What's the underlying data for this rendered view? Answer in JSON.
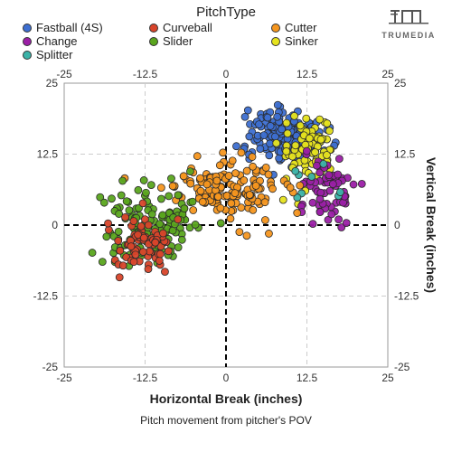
{
  "legend": {
    "title": "PitchType",
    "items": [
      {
        "label": "Fastball (4S)",
        "color": "#3d6fd1"
      },
      {
        "label": "Curveball",
        "color": "#d8442a"
      },
      {
        "label": "Cutter",
        "color": "#f5961f"
      },
      {
        "label": "Change",
        "color": "#9b1fa6"
      },
      {
        "label": "Slider",
        "color": "#5aa51d"
      },
      {
        "label": "Sinker",
        "color": "#e6e31e"
      },
      {
        "label": "Splitter",
        "color": "#3bb3a8"
      }
    ]
  },
  "brand": {
    "text": "TRUMEDIA"
  },
  "footnote": "Pitch movement from pitcher's POV",
  "chart_data": {
    "type": "scatter",
    "xlabel": "Horizontal Break (inches)",
    "ylabel": "Vertical Break (inches)",
    "xlim": [
      -25,
      25
    ],
    "ylim": [
      -25,
      25
    ],
    "x_ticks": [
      "-25",
      "-12.5",
      "0",
      "12.5",
      "25"
    ],
    "y_ticks": [
      "25",
      "12.5",
      "0",
      "-12.5",
      "-25"
    ],
    "grid": true,
    "legend_position": "top",
    "series": [
      {
        "name": "Fastball (4S)",
        "color": "#3d6fd1",
        "cx": 9,
        "cy": 16,
        "sx": 2.8,
        "sy": 2.3,
        "n": 180
      },
      {
        "name": "Sinker",
        "color": "#e6e31e",
        "cx": 13,
        "cy": 13,
        "sx": 2.2,
        "sy": 3.0,
        "n": 80
      },
      {
        "name": "Change",
        "color": "#9b1fa6",
        "cx": 15,
        "cy": 6,
        "sx": 2.2,
        "sy": 3.0,
        "n": 70
      },
      {
        "name": "Splitter",
        "color": "#3bb3a8",
        "cx": 14,
        "cy": 6,
        "sx": 2.0,
        "sy": 2.0,
        "n": 8
      },
      {
        "name": "Cutter",
        "color": "#f5961f",
        "cx": 0,
        "cy": 6.5,
        "sx": 4.5,
        "sy": 2.5,
        "n": 150
      },
      {
        "name": "Slider",
        "color": "#5aa51d",
        "cx": -12,
        "cy": 0.5,
        "sx": 3.5,
        "sy": 3.5,
        "n": 140
      },
      {
        "name": "Curveball",
        "color": "#d8442a",
        "cx": -13,
        "cy": -3.5,
        "sx": 3.0,
        "sy": 2.5,
        "n": 70
      }
    ]
  }
}
